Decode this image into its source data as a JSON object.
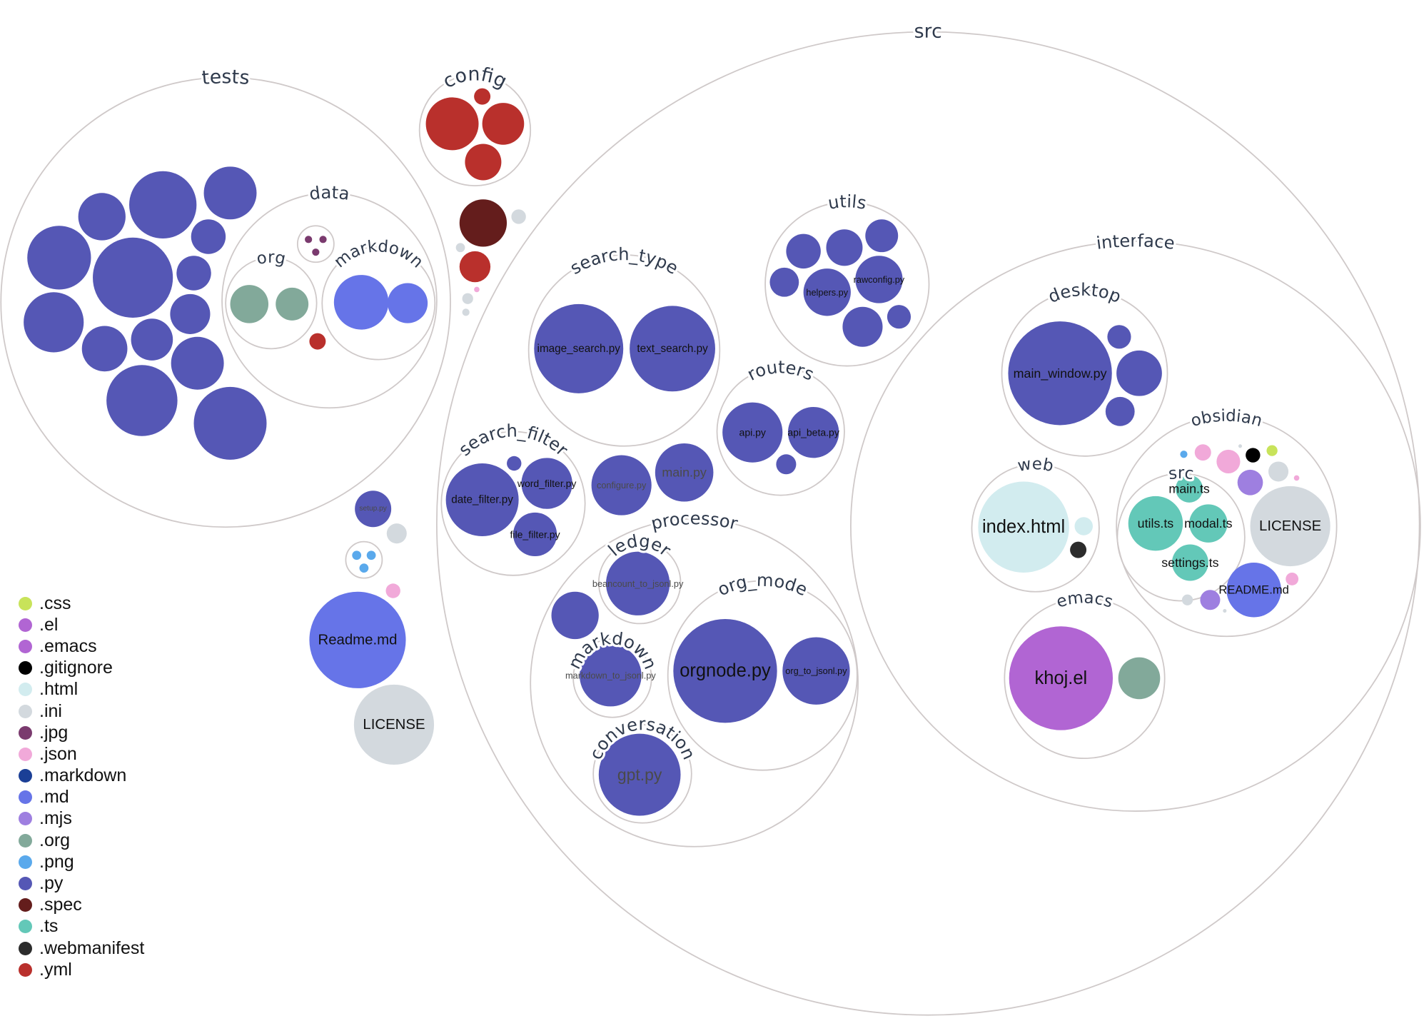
{
  "legend": [
    {
      "ext": ".css",
      "color": "#c8e35a"
    },
    {
      "ext": ".el",
      "color": "#b165d3"
    },
    {
      "ext": ".emacs",
      "color": "#b165d3"
    },
    {
      "ext": ".gitignore",
      "color": "#000000"
    },
    {
      "ext": ".html",
      "color": "#d2ecef"
    },
    {
      "ext": ".ini",
      "color": "#d3d9de"
    },
    {
      "ext": ".jpg",
      "color": "#7a3a6e"
    },
    {
      "ext": ".json",
      "color": "#f1a9d9"
    },
    {
      "ext": ".markdown",
      "color": "#1b3f96"
    },
    {
      "ext": ".md",
      "color": "#6674e8"
    },
    {
      "ext": ".mjs",
      "color": "#9e7fe0"
    },
    {
      "ext": ".org",
      "color": "#82a99a"
    },
    {
      "ext": ".png",
      "color": "#5aa9ec"
    },
    {
      "ext": ".py",
      "color": "#5557b5"
    },
    {
      "ext": ".spec",
      "color": "#641d1c"
    },
    {
      "ext": ".ts",
      "color": "#63c8b8"
    },
    {
      "ext": ".webmanifest",
      "color": "#2c2c2c"
    },
    {
      "ext": ".yml",
      "color": "#b9302c"
    }
  ],
  "folders": [
    {
      "name": "tests"
    },
    {
      "name": "data"
    },
    {
      "name": "org"
    },
    {
      "name": "markdown"
    },
    {
      "name": ""
    },
    {
      "name": "config"
    },
    {
      "name": "src"
    },
    {
      "name": "search_type"
    },
    {
      "name": "utils"
    },
    {
      "name": "routers"
    },
    {
      "name": "search_filter"
    },
    {
      "name": "processor"
    },
    {
      "name": "ledger"
    },
    {
      "name": "markdown"
    },
    {
      "name": "org_mode"
    },
    {
      "name": "conversation"
    },
    {
      "name": "interface"
    },
    {
      "name": "desktop"
    },
    {
      "name": "web"
    },
    {
      "name": "obsidian"
    },
    {
      "name": "src"
    },
    {
      "name": "emacs"
    },
    {
      "name": ""
    }
  ],
  "files": [
    {
      "name": "",
      "ext": ".py"
    },
    {
      "name": "",
      "ext": ".py"
    },
    {
      "name": "",
      "ext": ".py"
    },
    {
      "name": "",
      "ext": ".py"
    },
    {
      "name": "",
      "ext": ".py"
    },
    {
      "name": "",
      "ext": ".py"
    },
    {
      "name": "",
      "ext": ".py"
    },
    {
      "name": "",
      "ext": ".py"
    },
    {
      "name": "",
      "ext": ".py"
    },
    {
      "name": "",
      "ext": ".py"
    },
    {
      "name": "",
      "ext": ".py"
    },
    {
      "name": "",
      "ext": ".py"
    },
    {
      "name": "",
      "ext": ".py"
    },
    {
      "name": "",
      "ext": ".py"
    },
    {
      "name": "",
      "ext": ".org"
    },
    {
      "name": "",
      "ext": ".org"
    },
    {
      "name": "",
      "ext": ".md"
    },
    {
      "name": "",
      "ext": ".md"
    },
    {
      "name": "",
      "ext": ".yml"
    },
    {
      "name": "",
      "ext": ".jpg"
    },
    {
      "name": "",
      "ext": ".jpg"
    },
    {
      "name": "",
      "ext": ".jpg"
    },
    {
      "name": "",
      "ext": ".yml"
    },
    {
      "name": "",
      "ext": ".yml"
    },
    {
      "name": "",
      "ext": ".yml"
    },
    {
      "name": "",
      "ext": ".yml"
    },
    {
      "name": "",
      "ext": ".spec"
    },
    {
      "name": "",
      "ext": ".ini"
    },
    {
      "name": "",
      "ext": ".ini"
    },
    {
      "name": "",
      "ext": ".yml"
    },
    {
      "name": "",
      "ext": ".json"
    },
    {
      "name": "",
      "ext": ".ini"
    },
    {
      "name": "",
      "ext": ".ini"
    },
    {
      "name": "setup.py",
      "ext": ".py"
    },
    {
      "name": "",
      "ext": ".ini"
    },
    {
      "name": "",
      "ext": ".json"
    },
    {
      "name": "Readme.md",
      "ext": ".md"
    },
    {
      "name": "LICENSE",
      "ext": ".ini"
    },
    {
      "name": "",
      "ext": ".png"
    },
    {
      "name": "",
      "ext": ".png"
    },
    {
      "name": "",
      "ext": ".png"
    },
    {
      "name": "image_search.py",
      "ext": ".py"
    },
    {
      "name": "text_search.py",
      "ext": ".py"
    },
    {
      "name": "",
      "ext": ".py"
    },
    {
      "name": "",
      "ext": ".py"
    },
    {
      "name": "",
      "ext": ".py"
    },
    {
      "name": "",
      "ext": ".py"
    },
    {
      "name": "helpers.py",
      "ext": ".py"
    },
    {
      "name": "rawconfig.py",
      "ext": ".py"
    },
    {
      "name": "",
      "ext": ".py"
    },
    {
      "name": "",
      "ext": ".py"
    },
    {
      "name": "api.py",
      "ext": ".py"
    },
    {
      "name": "api_beta.py",
      "ext": ".py"
    },
    {
      "name": "",
      "ext": ".py"
    },
    {
      "name": "date_filter.py",
      "ext": ".py"
    },
    {
      "name": "word_filter.py",
      "ext": ".py"
    },
    {
      "name": "file_filter.py",
      "ext": ".py"
    },
    {
      "name": "",
      "ext": ".py"
    },
    {
      "name": "configure.py",
      "ext": ".py"
    },
    {
      "name": "main.py",
      "ext": ".py"
    },
    {
      "name": "beancount_to_jsonl.py",
      "ext": ".py"
    },
    {
      "name": "",
      "ext": ".py"
    },
    {
      "name": "markdown_to_jsonl.py",
      "ext": ".py"
    },
    {
      "name": "orgnode.py",
      "ext": ".py"
    },
    {
      "name": "org_to_jsonl.py",
      "ext": ".py"
    },
    {
      "name": "gpt.py",
      "ext": ".py"
    },
    {
      "name": "main_window.py",
      "ext": ".py"
    },
    {
      "name": "",
      "ext": ".py"
    },
    {
      "name": "",
      "ext": ".py"
    },
    {
      "name": "",
      "ext": ".py"
    },
    {
      "name": "index.html",
      "ext": ".html"
    },
    {
      "name": "",
      "ext": ".html"
    },
    {
      "name": "",
      "ext": ".webmanifest"
    },
    {
      "name": "main.ts",
      "ext": ".ts"
    },
    {
      "name": "utils.ts",
      "ext": ".ts"
    },
    {
      "name": "modal.ts",
      "ext": ".ts"
    },
    {
      "name": "settings.ts",
      "ext": ".ts"
    },
    {
      "name": "",
      "ext": ".png"
    },
    {
      "name": "",
      "ext": ".json"
    },
    {
      "name": "",
      "ext": ".json"
    },
    {
      "name": "",
      "ext": ".ini"
    },
    {
      "name": "",
      "ext": ".gitignore"
    },
    {
      "name": "",
      "ext": ".css"
    },
    {
      "name": "",
      "ext": ".mjs"
    },
    {
      "name": "",
      "ext": ".ini"
    },
    {
      "name": "",
      "ext": ".json"
    },
    {
      "name": "LICENSE",
      "ext": ".ini"
    },
    {
      "name": "README.md",
      "ext": ".md"
    },
    {
      "name": "",
      "ext": ".json"
    },
    {
      "name": "",
      "ext": ".ini"
    },
    {
      "name": "",
      "ext": ".mjs"
    },
    {
      "name": "",
      "ext": ".ini"
    },
    {
      "name": "khoj.el",
      "ext": ".el"
    },
    {
      "name": "",
      "ext": ".org"
    }
  ]
}
